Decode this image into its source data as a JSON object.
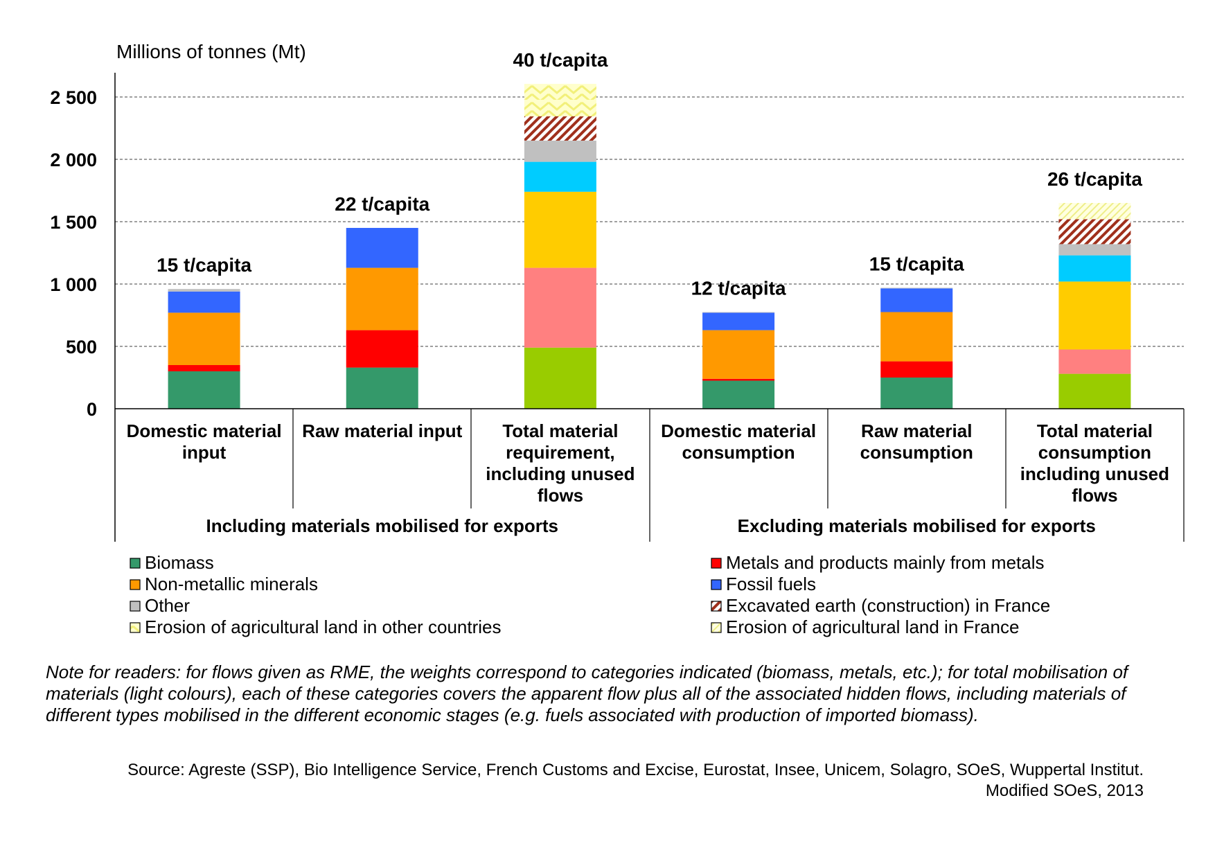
{
  "chart_data": {
    "type": "stacked-bar",
    "ylabel": "Millions of tonnes (Mt)",
    "ylim": [
      0,
      2700
    ],
    "yticks": [
      0,
      500,
      1000,
      1500,
      2000,
      2500
    ],
    "ytick_labels": [
      "0",
      "500",
      "1 000",
      "1 500",
      "2 000",
      "2 500"
    ],
    "grid": true,
    "categories": [
      "Domestic material input",
      "Raw material input",
      "Total material requirement, including unused flows",
      "Domestic material consumption",
      "Raw material consumption",
      "Total material consumption including unused flows"
    ],
    "per_capita": [
      "15 t/capita",
      "22 t/capita",
      "40 t/capita",
      "12 t/capita",
      "15 t/capita",
      "26 t/capita"
    ],
    "groups": [
      {
        "label": "Including materials mobilised for exports",
        "categories": [
          0,
          1,
          2
        ]
      },
      {
        "label": "Excluding materials mobilised for exports",
        "categories": [
          3,
          4,
          5
        ]
      }
    ],
    "series": [
      {
        "key": "biomass",
        "fill": "#34996a",
        "light_fill": "#99cc00",
        "values": [
          300,
          330,
          490,
          225,
          250,
          280
        ]
      },
      {
        "key": "metals",
        "fill": "#ff0000",
        "light_fill": "#ff8080",
        "values": [
          50,
          300,
          640,
          15,
          130,
          195
        ]
      },
      {
        "key": "nonmetallic",
        "fill": "#ff9900",
        "light_fill": "#ffcc00",
        "values": [
          420,
          500,
          610,
          390,
          395,
          545
        ]
      },
      {
        "key": "fossil",
        "fill": "#3366ff",
        "light_fill": "#00ccff",
        "values": [
          170,
          320,
          240,
          140,
          190,
          210
        ]
      },
      {
        "key": "other",
        "fill": "#c0c0c0",
        "light_fill": "#c0c0c0",
        "values": [
          20,
          0,
          170,
          5,
          5,
          90
        ]
      },
      {
        "key": "excavated",
        "fill": "pattern-excavated",
        "light_fill": "pattern-excavated",
        "values": [
          0,
          0,
          195,
          0,
          0,
          200
        ]
      },
      {
        "key": "erosion_other",
        "fill": "pattern-erosion-other",
        "light_fill": "pattern-erosion-other",
        "values": [
          0,
          0,
          260,
          0,
          0,
          0
        ]
      },
      {
        "key": "erosion_france",
        "fill": "pattern-erosion-france",
        "light_fill": "pattern-erosion-france",
        "values": [
          0,
          0,
          0,
          0,
          0,
          130
        ]
      }
    ],
    "light_colour_bars": [
      2,
      5
    ],
    "legend": [
      {
        "label": "Biomass",
        "swatch": "#34996a"
      },
      {
        "label": "Metals and products mainly from metals",
        "swatch": "#ff0000"
      },
      {
        "label": "Non-metallic minerals",
        "swatch": "#ff9900"
      },
      {
        "label": "Fossil fuels",
        "swatch": "#3366ff"
      },
      {
        "label": "Other",
        "swatch": "#c0c0c0"
      },
      {
        "label": "Excavated earth (construction) in France",
        "swatch": "pattern-excavated"
      },
      {
        "label": "Erosion of agricultural land in other countries",
        "swatch": "pattern-erosion-other"
      },
      {
        "label": "Erosion of agricultural land in France",
        "swatch": "pattern-erosion-france"
      }
    ],
    "legend_placement": "bottom, two columns"
  },
  "note": "Note for readers: for flows given as RME, the weights correspond to categories indicated (biomass, metals, etc.); for total mobilisation of materials (light colours), each of these categories covers the apparent flow plus all of the associated hidden flows, including materials of different types mobilised in the different economic  stages (e.g. fuels associated with production of imported biomass).",
  "source": {
    "line1": "Source: Agreste (SSP), Bio Intelligence Service, French Customs and Excise, Eurostat, Insee, Unicem, Solagro, SOeS, Wuppertal Institut.",
    "line2": "Modified SOeS, 2013"
  }
}
